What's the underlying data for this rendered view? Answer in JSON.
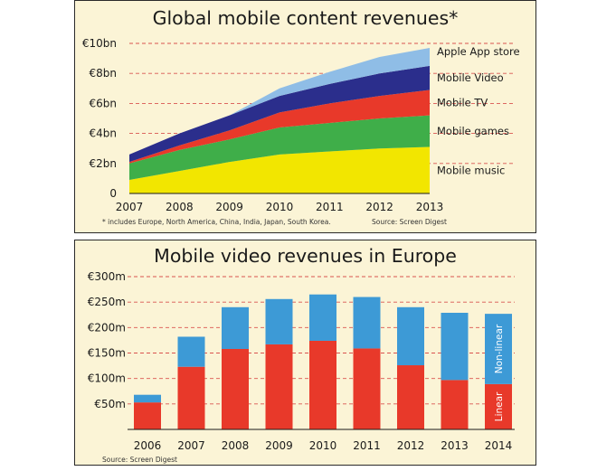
{
  "chart_data": [
    {
      "type": "area",
      "title": "Global mobile content revenues*",
      "x": [
        "2007",
        "2008",
        "2009",
        "2010",
        "2011",
        "2012",
        "2013"
      ],
      "ylim": [
        0,
        10
      ],
      "yticks": [
        "0",
        "€2bn",
        "€4bn",
        "€6bn",
        "€8bn",
        "€10bn"
      ],
      "stacked": true,
      "grid": "dashed horizontal",
      "series": [
        {
          "name": "Mobile music",
          "color": "#f2e600",
          "values": [
            0.9,
            1.5,
            2.1,
            2.6,
            2.8,
            3.0,
            3.1
          ]
        },
        {
          "name": "Mobile games",
          "color": "#3fae49",
          "values": [
            1.1,
            1.4,
            1.5,
            1.8,
            1.9,
            2.0,
            2.1
          ]
        },
        {
          "name": "Mobile TV",
          "color": "#e8392a",
          "values": [
            0.1,
            0.3,
            0.6,
            1.0,
            1.3,
            1.5,
            1.7
          ]
        },
        {
          "name": "Mobile Video",
          "color": "#2b2e8c",
          "values": [
            0.5,
            0.8,
            1.0,
            1.1,
            1.3,
            1.5,
            1.6
          ]
        },
        {
          "name": "Apple App store",
          "color": "#8fbde6",
          "values": [
            0.0,
            0.0,
            0.0,
            0.5,
            0.8,
            1.1,
            1.2
          ]
        }
      ],
      "footnote": "* includes Europe, North America, China, India, Japan, South Korea.",
      "source": "Source: Screen Digest"
    },
    {
      "type": "bar",
      "stacked": true,
      "title": "Mobile video revenues in Europe",
      "categories": [
        "2006",
        "2007",
        "2008",
        "2009",
        "2010",
        "2011",
        "2012",
        "2013",
        "2014"
      ],
      "ylim": [
        0,
        300
      ],
      "yticks": [
        "€50m",
        "€100m",
        "€150m",
        "€200m",
        "€250m",
        "€300m"
      ],
      "grid": "dashed horizontal",
      "series": [
        {
          "name": "Linear",
          "color": "#e8392a",
          "values": [
            53,
            123,
            158,
            167,
            174,
            159,
            126,
            97,
            89
          ]
        },
        {
          "name": "Non-linear",
          "color": "#3d9ad6",
          "values": [
            15,
            59,
            82,
            89,
            91,
            101,
            114,
            132,
            138
          ]
        }
      ],
      "source": "Source: Screen Digest"
    }
  ]
}
